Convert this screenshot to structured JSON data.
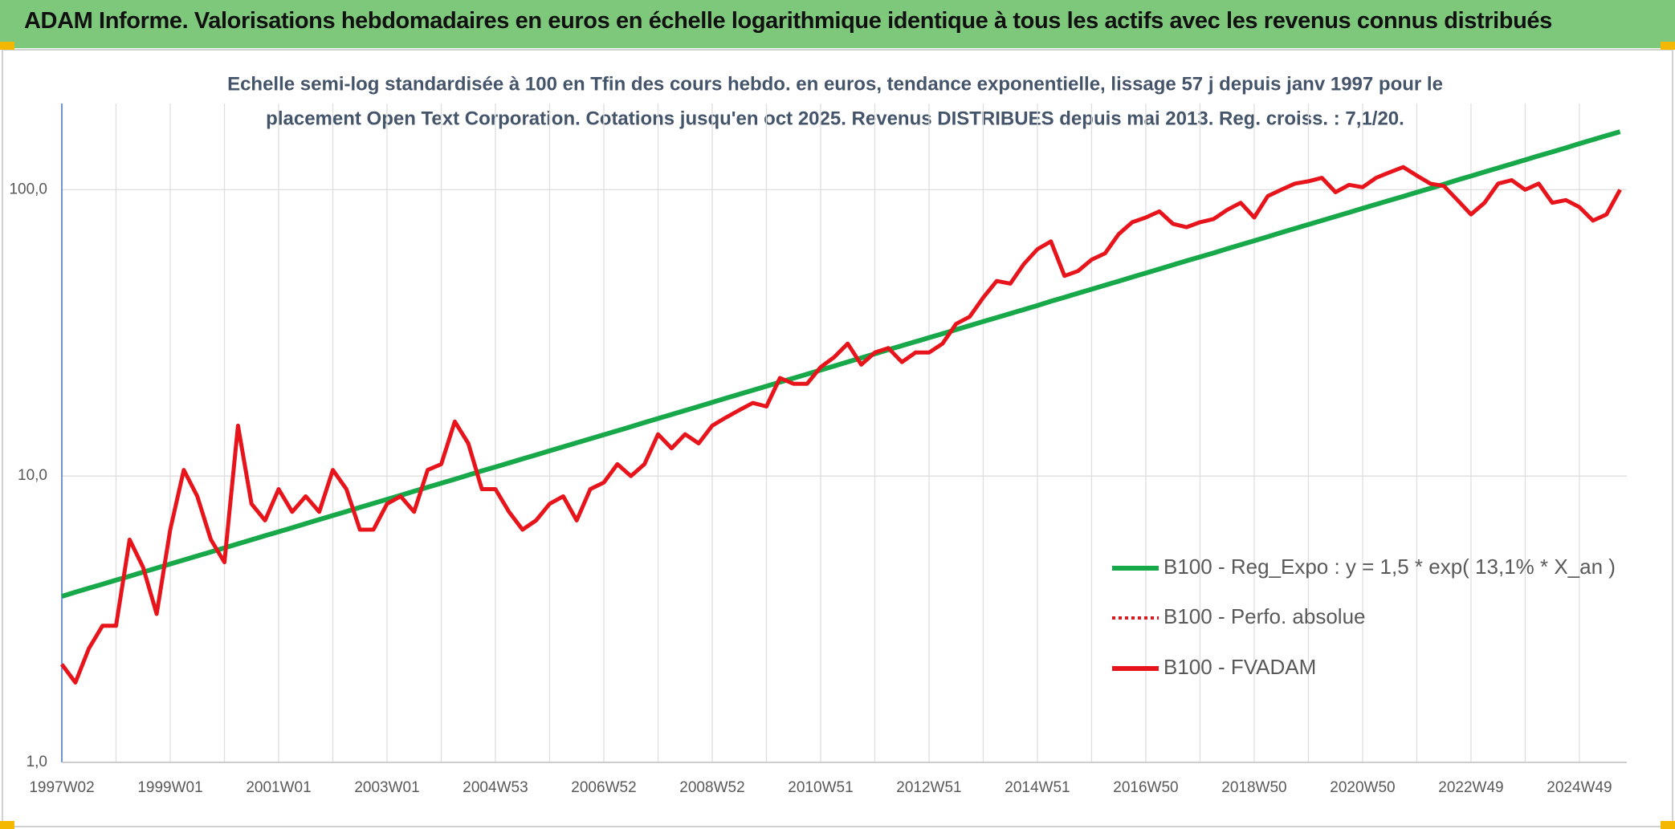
{
  "header": {
    "title": "ADAM Informe. Valorisations hebdomadaires en euros en échelle logarithmique identique à tous les actifs avec les revenus connus distribués"
  },
  "chart_data": {
    "type": "line",
    "subtitle": [
      "Echelle semi-log standardisée à 100 en Tfin des cours hebdo. en euros, tendance exponentielle, lissage 57 j depuis janv 1997 pour le",
      "placement Open Text Corporation. Cotations jusqu'en oct 2025. Revenus DISTRIBUES depuis mai 2013. Reg. croiss. : 7,1/20."
    ],
    "log_scale": true,
    "grid": true,
    "legend": "bottom-right",
    "ylim": [
      1,
      200
    ],
    "yticks": [
      {
        "value": 1,
        "label": "1,0"
      },
      {
        "value": 10,
        "label": "10,0"
      },
      {
        "value": 100,
        "label": "100,0"
      }
    ],
    "categories": [
      "1997W02",
      null,
      null,
      null,
      null,
      null,
      null,
      null,
      "1999W01",
      null,
      null,
      null,
      null,
      null,
      null,
      null,
      "2001W01",
      null,
      null,
      null,
      null,
      null,
      null,
      null,
      "2003W01",
      null,
      null,
      null,
      null,
      null,
      null,
      null,
      "2004W53",
      null,
      null,
      null,
      null,
      null,
      null,
      null,
      "2006W52",
      null,
      null,
      null,
      null,
      null,
      null,
      null,
      "2008W52",
      null,
      null,
      null,
      null,
      null,
      null,
      null,
      "2010W51",
      null,
      null,
      null,
      null,
      null,
      null,
      null,
      "2012W51",
      null,
      null,
      null,
      null,
      null,
      null,
      null,
      "2014W51",
      null,
      null,
      null,
      null,
      null,
      null,
      null,
      "2016W50",
      null,
      null,
      null,
      null,
      null,
      null,
      null,
      "2018W50",
      null,
      null,
      null,
      null,
      null,
      null,
      null,
      "2020W50",
      null,
      null,
      null,
      null,
      null,
      null,
      null,
      "2022W49",
      null,
      null,
      null,
      null,
      null,
      null,
      null,
      "2024W49",
      null,
      null,
      null
    ],
    "series": [
      {
        "name": "B100 - Reg_Expo : y = 1,5 * exp( 13,1% *  X_an )",
        "color": "#17a84a",
        "style": "solid",
        "values": [
          3.8,
          3.93,
          4.06,
          4.19,
          4.33,
          4.47,
          4.62,
          4.77,
          4.93,
          5.09,
          5.26,
          5.43,
          5.61,
          5.8,
          5.99,
          6.19,
          6.39,
          6.6,
          6.82,
          7.05,
          7.28,
          7.52,
          7.77,
          8.03,
          8.29,
          8.56,
          8.85,
          9.14,
          9.44,
          9.75,
          10.08,
          10.42,
          10.76,
          11.11,
          11.48,
          11.85,
          12.25,
          12.65,
          13.07,
          13.49,
          13.94,
          14.39,
          14.87,
          15.38,
          15.88,
          16.41,
          16.94,
          17.5,
          18.08,
          18.69,
          19.3,
          19.94,
          20.6,
          21.29,
          21.98,
          22.69,
          23.46,
          24.23,
          25.03,
          25.85,
          26.72,
          27.62,
          28.52,
          29.45,
          30.43,
          31.41,
          32.47,
          33.54,
          34.65,
          35.76,
          36.95,
          38.15,
          39.42,
          40.77,
          42.1,
          43.5,
          44.91,
          46.39,
          47.93,
          49.55,
          51.16,
          52.86,
          54.61,
          56.44,
          58.27,
          60.15,
          62.19,
          64.23,
          66.35,
          68.53,
          70.83,
          73.22,
          75.61,
          78.07,
          80.67,
          83.27,
          86.08,
          88.92,
          91.86,
          94.8,
          97.95,
          101.1,
          104.5,
          108.1,
          111.6,
          115.3,
          119.1,
          123.0,
          127.1,
          131.4,
          135.6,
          140.1,
          144.8,
          149.6,
          154.5,
          159.5
        ]
      },
      {
        "name": "B100 - Perfo. absolue",
        "color": "#e8141b",
        "style": "dotted",
        "values": [
          2.2,
          1.9,
          2.5,
          3.0,
          3.0,
          6.0,
          4.8,
          3.3,
          6.5,
          10.5,
          8.5,
          6.0,
          5.0,
          15,
          8.0,
          7.0,
          9.0,
          7.5,
          8.5,
          7.5,
          10.5,
          9.0,
          6.5,
          6.5,
          8.0,
          8.5,
          7.5,
          10.5,
          11.0,
          15.5,
          13.0,
          9.0,
          9.0,
          7.5,
          6.5,
          7.0,
          8.0,
          8.5,
          7.0,
          9.0,
          9.5,
          11.0,
          10.0,
          11.0,
          14.0,
          12.5,
          14.0,
          13.0,
          15.0,
          16.0,
          17.0,
          18.0,
          17.5,
          22.0,
          21.0,
          21.0,
          24.0,
          26.0,
          29.0,
          24.5,
          27.0,
          28.0,
          25.0,
          27.0,
          27.0,
          29.0,
          34.0,
          36.0,
          42.0,
          48.0,
          47.0,
          55.0,
          62.0,
          66.0,
          50.0,
          52.0,
          57.0,
          60.0,
          70.0,
          77.0,
          80.0,
          84.0,
          76.0,
          74.0,
          77.0,
          79.0,
          85.0,
          90.0,
          80.0,
          95.0,
          100.0,
          105.0,
          107.0,
          110.0,
          98.0,
          104.0,
          102.0,
          110.0,
          115.0,
          120.0,
          112.0,
          105.0,
          103.0,
          92.0,
          82.0,
          90.0,
          105.0,
          108.0,
          100.0,
          105.0,
          90.0,
          92.0,
          87.0,
          78.0,
          82.0,
          100.0
        ]
      },
      {
        "name": "B100 - FVADAM",
        "color": "#e8141b",
        "style": "solid",
        "values": [
          2.2,
          1.9,
          2.5,
          3.0,
          3.0,
          6.0,
          4.8,
          3.3,
          6.5,
          10.5,
          8.5,
          6.0,
          5.0,
          15,
          8.0,
          7.0,
          9.0,
          7.5,
          8.5,
          7.5,
          10.5,
          9.0,
          6.5,
          6.5,
          8.0,
          8.5,
          7.5,
          10.5,
          11.0,
          15.5,
          13.0,
          9.0,
          9.0,
          7.5,
          6.5,
          7.0,
          8.0,
          8.5,
          7.0,
          9.0,
          9.5,
          11.0,
          10.0,
          11.0,
          14.0,
          12.5,
          14.0,
          13.0,
          15.0,
          16.0,
          17.0,
          18.0,
          17.5,
          22.0,
          21.0,
          21.0,
          24.0,
          26.0,
          29.0,
          24.5,
          27.0,
          28.0,
          25.0,
          27.0,
          27.0,
          29.0,
          34.0,
          36.0,
          42.0,
          48.0,
          47.0,
          55.0,
          62.0,
          66.0,
          50.0,
          52.0,
          57.0,
          60.0,
          70.0,
          77.0,
          80.0,
          84.0,
          76.0,
          74.0,
          77.0,
          79.0,
          85.0,
          90.0,
          80.0,
          95.0,
          100.0,
          105.0,
          107.0,
          110.0,
          98.0,
          104.0,
          102.0,
          110.0,
          115.0,
          120.0,
          112.0,
          105.0,
          103.0,
          92.0,
          82.0,
          90.0,
          105.0,
          108.0,
          100.0,
          105.0,
          90.0,
          92.0,
          87.0,
          78.0,
          82.0,
          100.0
        ]
      }
    ]
  }
}
